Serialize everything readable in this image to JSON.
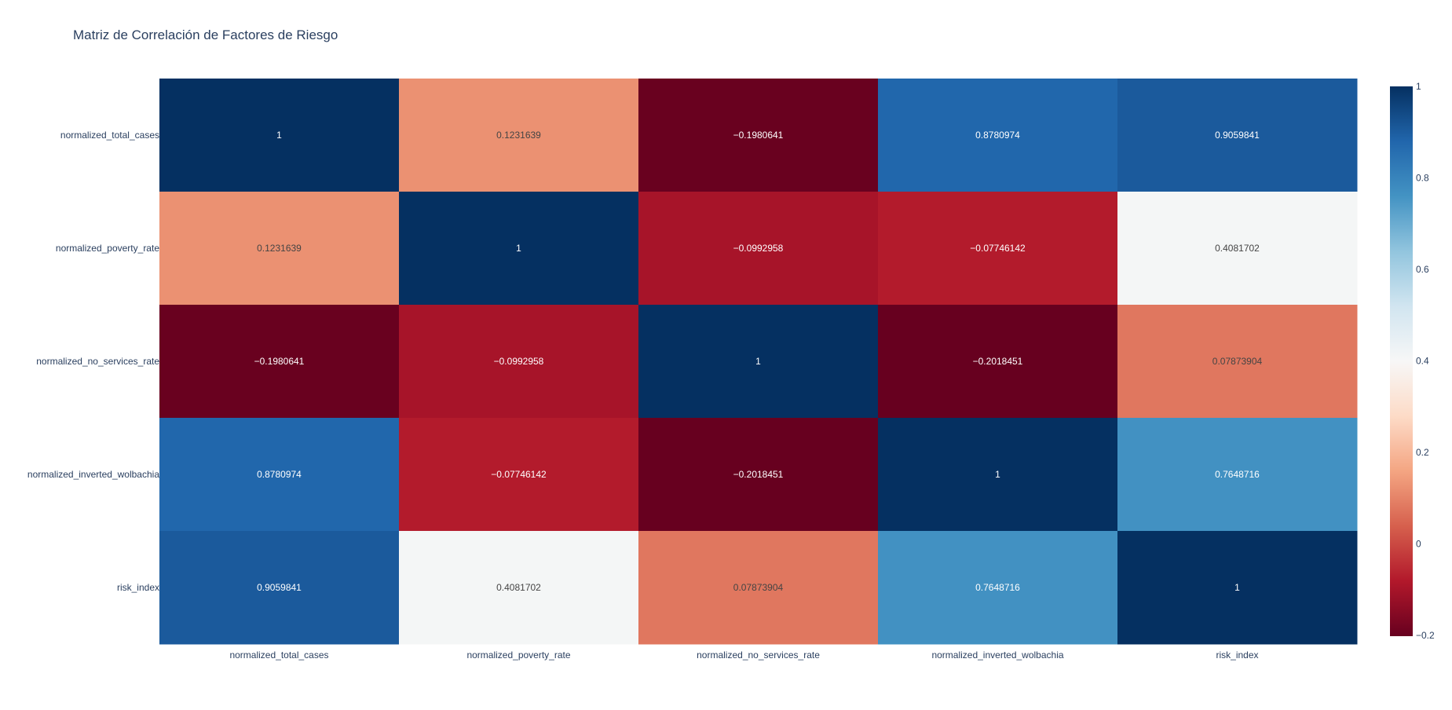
{
  "chart_data": {
    "type": "heatmap",
    "title": "Matriz de Correlación de Factores de Riesgo",
    "x_categories": [
      "normalized_total_cases",
      "normalized_poverty_rate",
      "normalized_no_services_rate",
      "normalized_inverted_wolbachia",
      "risk_index"
    ],
    "y_categories": [
      "normalized_total_cases",
      "normalized_poverty_rate",
      "normalized_no_services_rate",
      "normalized_inverted_wolbachia",
      "risk_index"
    ],
    "z": [
      [
        1,
        0.1231639,
        -0.1980641,
        0.8780974,
        0.9059841
      ],
      [
        0.1231639,
        1,
        -0.0992958,
        -0.07746142,
        0.4081702
      ],
      [
        -0.1980641,
        -0.0992958,
        1,
        -0.2018451,
        0.07873904
      ],
      [
        0.8780974,
        -0.07746142,
        -0.2018451,
        1,
        0.7648716
      ],
      [
        0.9059841,
        0.4081702,
        0.07873904,
        0.7648716,
        1
      ]
    ],
    "zmin": -0.2018451,
    "zmax": 1,
    "colorscale": "RdBu",
    "colorbar": {
      "ticks": [
        1,
        0.8,
        0.6,
        0.4,
        0.2,
        0,
        -0.2
      ],
      "tick_labels": [
        "1",
        "0.8",
        "0.6",
        "0.4",
        "0.2",
        "0",
        "−0.2"
      ]
    }
  },
  "cell_labels": [
    [
      "1",
      "0.1231639",
      "−0.1980641",
      "0.8780974",
      "0.9059841"
    ],
    [
      "0.1231639",
      "1",
      "−0.0992958",
      "−0.07746142",
      "0.4081702"
    ],
    [
      "−0.1980641",
      "−0.0992958",
      "1",
      "−0.2018451",
      "0.07873904"
    ],
    [
      "0.8780974",
      "−0.07746142",
      "−0.2018451",
      "1",
      "0.7648716"
    ],
    [
      "0.9059841",
      "0.4081702",
      "0.07873904",
      "0.7648716",
      "1"
    ]
  ],
  "colors": {
    "title": "#2a3f5f",
    "axis_text": "#2a3f5f",
    "scale": [
      "#67001f",
      "#b2182b",
      "#d6604d",
      "#f4a582",
      "#fddbc7",
      "#f7f7f7",
      "#d1e5f0",
      "#92c5de",
      "#4393c3",
      "#2166ac",
      "#053061"
    ]
  }
}
